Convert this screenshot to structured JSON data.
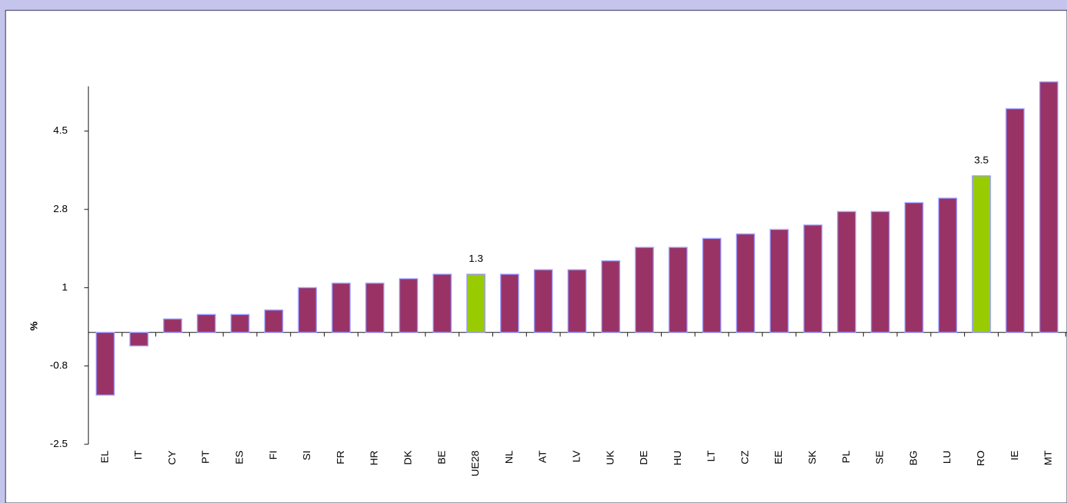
{
  "chart_data": {
    "type": "bar",
    "y_label": "%",
    "categories": [
      "EL",
      "IT",
      "CY",
      "PT",
      "ES",
      "FI",
      "SI",
      "FR",
      "HR",
      "DK",
      "BE",
      "UE28",
      "NL",
      "AT",
      "LV",
      "UK",
      "DE",
      "HU",
      "LT",
      "CZ",
      "EE",
      "SK",
      "PL",
      "SE",
      "BG",
      "LU",
      "RO",
      "IE",
      "MT"
    ],
    "values": [
      -1.4,
      -0.3,
      0.3,
      0.4,
      0.4,
      0.5,
      1.0,
      1.1,
      1.1,
      1.2,
      1.3,
      1.3,
      1.3,
      1.4,
      1.4,
      1.6,
      1.9,
      1.9,
      2.1,
      2.2,
      2.3,
      2.4,
      2.7,
      2.7,
      2.9,
      3.0,
      3.5,
      5.0,
      5.6
    ],
    "value_labels": [
      null,
      null,
      null,
      null,
      null,
      null,
      null,
      null,
      null,
      null,
      null,
      "1.3",
      null,
      null,
      null,
      null,
      null,
      null,
      null,
      null,
      null,
      null,
      null,
      null,
      null,
      null,
      "3.5",
      null,
      null
    ],
    "colors": [
      "#993366",
      "#993366",
      "#993366",
      "#993366",
      "#993366",
      "#993366",
      "#993366",
      "#993366",
      "#993366",
      "#993366",
      "#993366",
      "#99cc00",
      "#993366",
      "#993366",
      "#993366",
      "#993366",
      "#993366",
      "#993366",
      "#993366",
      "#993366",
      "#993366",
      "#993366",
      "#993366",
      "#993366",
      "#993366",
      "#993366",
      "#99cc00",
      "#993366",
      "#993366"
    ],
    "ylim": [
      -2.5,
      5.5
    ],
    "yticks": [
      -2.5,
      {
        "value": -0.75,
        "label": "-0.8"
      },
      1.0,
      {
        "value": 2.75,
        "label": "2.8"
      },
      4.5
    ]
  }
}
